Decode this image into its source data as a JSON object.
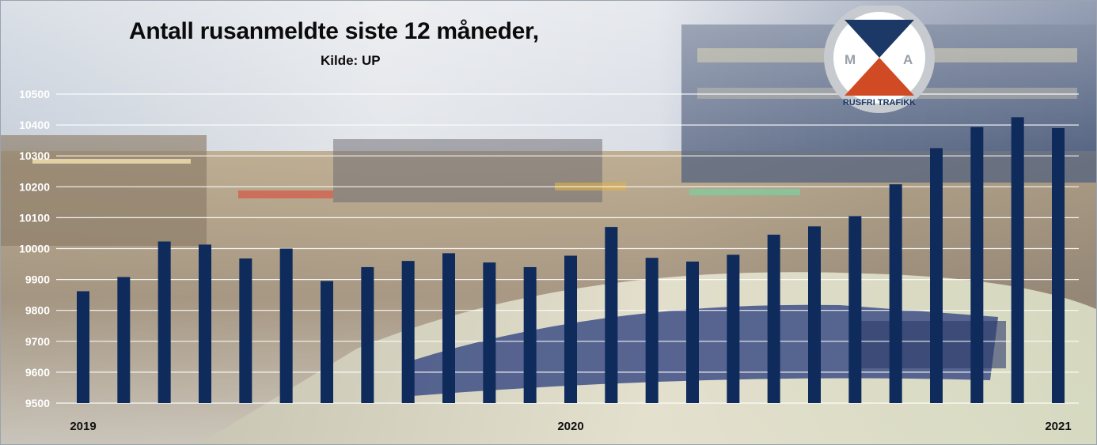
{
  "title": "Antall rusanmeldte siste 12 måneder,",
  "source": "Kilde: UP",
  "logo": {
    "letters": [
      "M",
      "A"
    ],
    "text": "RUSFRI TRAFIKK",
    "colors": {
      "navy": "#1b3866",
      "red": "#d04a24",
      "ring": "#bfc3c7"
    }
  },
  "colors": {
    "bar": "#0e2b5c",
    "grid": "#ffffff",
    "axis_text": "#ffffff",
    "year_text": "#111111"
  },
  "chart_data": {
    "type": "bar",
    "title": "Antall rusanmeldte siste 12 måneder,",
    "subtitle": "Kilde: UP",
    "xlabel": "",
    "ylabel": "",
    "ylim": [
      9500,
      10500
    ],
    "yticks": [
      9500,
      9600,
      9700,
      9800,
      9900,
      10000,
      10100,
      10200,
      10300,
      10400,
      10500
    ],
    "grid": true,
    "legend": "none",
    "x_tick_labels": [
      {
        "index": 0,
        "label": "2019"
      },
      {
        "index": 12,
        "label": "2020"
      },
      {
        "index": 24,
        "label": "2021"
      }
    ],
    "values": [
      9862,
      9908,
      10023,
      10013,
      9968,
      10000,
      9895,
      9940,
      9960,
      9985,
      9955,
      9940,
      9977,
      10070,
      9970,
      9958,
      9980,
      10045,
      10072,
      10105,
      10208,
      10325,
      10393,
      10425,
      10390
    ]
  }
}
